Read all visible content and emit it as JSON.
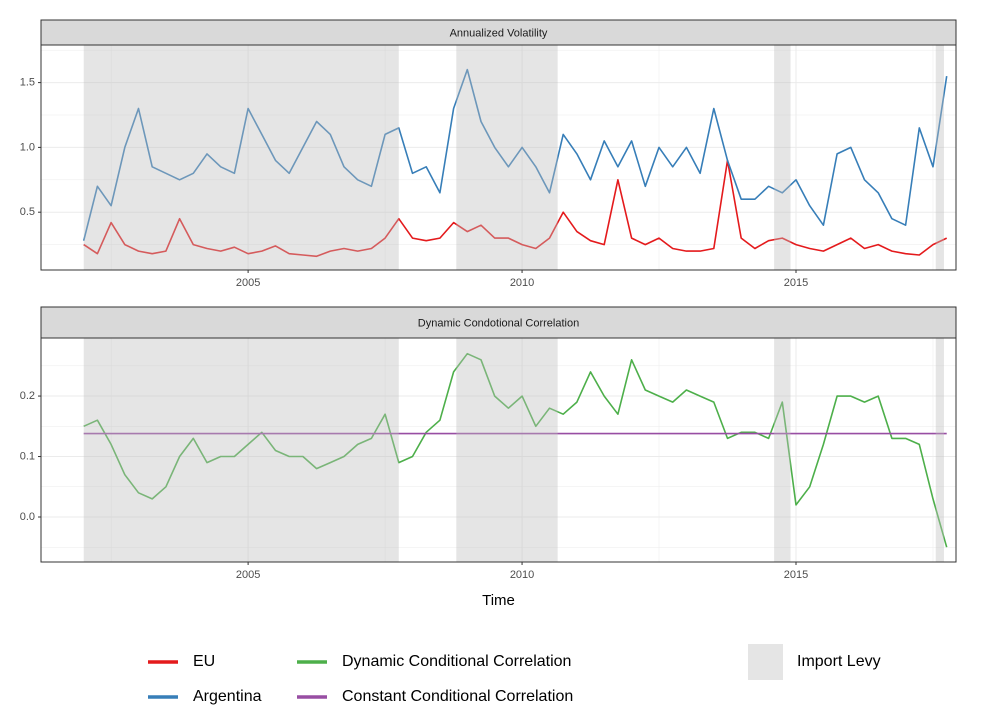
{
  "chart_data": [
    {
      "type": "line",
      "title": "Annualized Volatility",
      "x": [
        2002.0,
        2002.25,
        2002.5,
        2002.75,
        2003.0,
        2003.25,
        2003.5,
        2003.75,
        2004.0,
        2004.25,
        2004.5,
        2004.75,
        2005.0,
        2005.25,
        2005.5,
        2005.75,
        2006.0,
        2006.25,
        2006.5,
        2006.75,
        2007.0,
        2007.25,
        2007.5,
        2007.75,
        2008.0,
        2008.25,
        2008.5,
        2008.75,
        2009.0,
        2009.25,
        2009.5,
        2009.75,
        2010.0,
        2010.25,
        2010.5,
        2010.75,
        2011.0,
        2011.25,
        2011.5,
        2011.75,
        2012.0,
        2012.25,
        2012.5,
        2012.75,
        2013.0,
        2013.25,
        2013.5,
        2013.75,
        2014.0,
        2014.25,
        2014.5,
        2014.75,
        2015.0,
        2015.25,
        2015.5,
        2015.75,
        2016.0,
        2016.25,
        2016.5,
        2016.75,
        2017.0,
        2017.25,
        2017.5,
        2017.75
      ],
      "series": [
        {
          "name": "EU",
          "color": "#e41a1c",
          "values": [
            0.25,
            0.18,
            0.42,
            0.25,
            0.2,
            0.18,
            0.2,
            0.45,
            0.25,
            0.22,
            0.2,
            0.23,
            0.18,
            0.2,
            0.24,
            0.18,
            0.17,
            0.16,
            0.2,
            0.22,
            0.2,
            0.22,
            0.3,
            0.45,
            0.3,
            0.28,
            0.3,
            0.42,
            0.35,
            0.4,
            0.3,
            0.3,
            0.25,
            0.22,
            0.3,
            0.5,
            0.35,
            0.28,
            0.25,
            0.75,
            0.3,
            0.25,
            0.3,
            0.22,
            0.2,
            0.2,
            0.22,
            0.9,
            0.3,
            0.22,
            0.28,
            0.3,
            0.25,
            0.22,
            0.2,
            0.25,
            0.3,
            0.22,
            0.25,
            0.2,
            0.18,
            0.17,
            0.25,
            0.3
          ]
        },
        {
          "name": "Argentina",
          "color": "#377eb8",
          "values": [
            0.28,
            0.7,
            0.55,
            1.0,
            1.3,
            0.85,
            0.8,
            0.75,
            0.8,
            0.95,
            0.85,
            0.8,
            1.3,
            1.1,
            0.9,
            0.8,
            1.0,
            1.2,
            1.1,
            0.85,
            0.75,
            0.7,
            1.1,
            1.15,
            0.8,
            0.85,
            0.65,
            1.3,
            1.6,
            1.2,
            1.0,
            0.85,
            1.0,
            0.85,
            0.65,
            1.1,
            0.95,
            0.75,
            1.05,
            0.85,
            1.05,
            0.7,
            1.0,
            0.85,
            1.0,
            0.8,
            1.3,
            0.9,
            0.6,
            0.6,
            0.7,
            0.65,
            0.75,
            0.55,
            0.4,
            0.95,
            1.0,
            0.75,
            0.65,
            0.45,
            0.4,
            1.15,
            0.85,
            1.55
          ]
        }
      ],
      "shaded": {
        "name": "Import Levy",
        "color": "#bfbfbf",
        "alpha": 0.4,
        "spans": [
          [
            2002.0,
            2007.75
          ],
          [
            2008.8,
            2010.65
          ],
          [
            2014.6,
            2014.9
          ],
          [
            2017.55,
            2017.7
          ]
        ]
      },
      "xlim": [
        2001.22,
        2017.92
      ],
      "xticks": [
        2005,
        2010,
        2015
      ],
      "ylim": [
        0.054,
        1.79
      ],
      "yticks": [
        0.5,
        {
          "value": 1.0,
          "label": "1.0"
        },
        1.5
      ],
      "grid": true
    },
    {
      "type": "line",
      "title": "Dynamic Condotional Correlation",
      "x_label": "Time",
      "x": [
        2002.0,
        2002.25,
        2002.5,
        2002.75,
        2003.0,
        2003.25,
        2003.5,
        2003.75,
        2004.0,
        2004.25,
        2004.5,
        2004.75,
        2005.0,
        2005.25,
        2005.5,
        2005.75,
        2006.0,
        2006.25,
        2006.5,
        2006.75,
        2007.0,
        2007.25,
        2007.5,
        2007.75,
        2008.0,
        2008.25,
        2008.5,
        2008.75,
        2009.0,
        2009.25,
        2009.5,
        2009.75,
        2010.0,
        2010.25,
        2010.5,
        2010.75,
        2011.0,
        2011.25,
        2011.5,
        2011.75,
        2012.0,
        2012.25,
        2012.5,
        2012.75,
        2013.0,
        2013.25,
        2013.5,
        2013.75,
        2014.0,
        2014.25,
        2014.5,
        2014.75,
        2015.0,
        2015.25,
        2015.5,
        2015.75,
        2016.0,
        2016.25,
        2016.5,
        2016.75,
        2017.0,
        2017.25,
        2017.5,
        2017.75
      ],
      "series": [
        {
          "name": "Dynamic Conditional Correlation",
          "color": "#4daf4a",
          "values": [
            0.15,
            0.16,
            0.12,
            0.07,
            0.04,
            0.03,
            0.05,
            0.1,
            0.13,
            0.09,
            0.1,
            0.1,
            0.12,
            0.14,
            0.11,
            0.1,
            0.1,
            0.08,
            0.09,
            0.1,
            0.12,
            0.13,
            0.17,
            0.09,
            0.1,
            0.14,
            0.16,
            0.24,
            0.27,
            0.26,
            0.2,
            0.18,
            0.2,
            0.15,
            0.18,
            0.17,
            0.19,
            0.24,
            0.2,
            0.17,
            0.26,
            0.21,
            0.2,
            0.19,
            0.21,
            0.2,
            0.19,
            0.13,
            0.14,
            0.14,
            0.13,
            0.19,
            0.02,
            0.05,
            0.12,
            0.2,
            0.2,
            0.19,
            0.2,
            0.13,
            0.13,
            0.12,
            0.03,
            -0.05
          ]
        },
        {
          "name": "Constant Conditional Correlation",
          "color": "#984ea3",
          "x": [
            2002.0,
            2017.75
          ],
          "values": [
            0.138,
            0.138
          ]
        }
      ],
      "xlim": [
        2001.22,
        2017.92
      ],
      "xticks": [
        2005,
        2010,
        2015
      ],
      "ylim": [
        -0.0744,
        0.296
      ],
      "yticks": [
        {
          "value": 0.0,
          "label": "0.0"
        },
        0.1,
        0.2
      ],
      "grid": true
    }
  ]
}
